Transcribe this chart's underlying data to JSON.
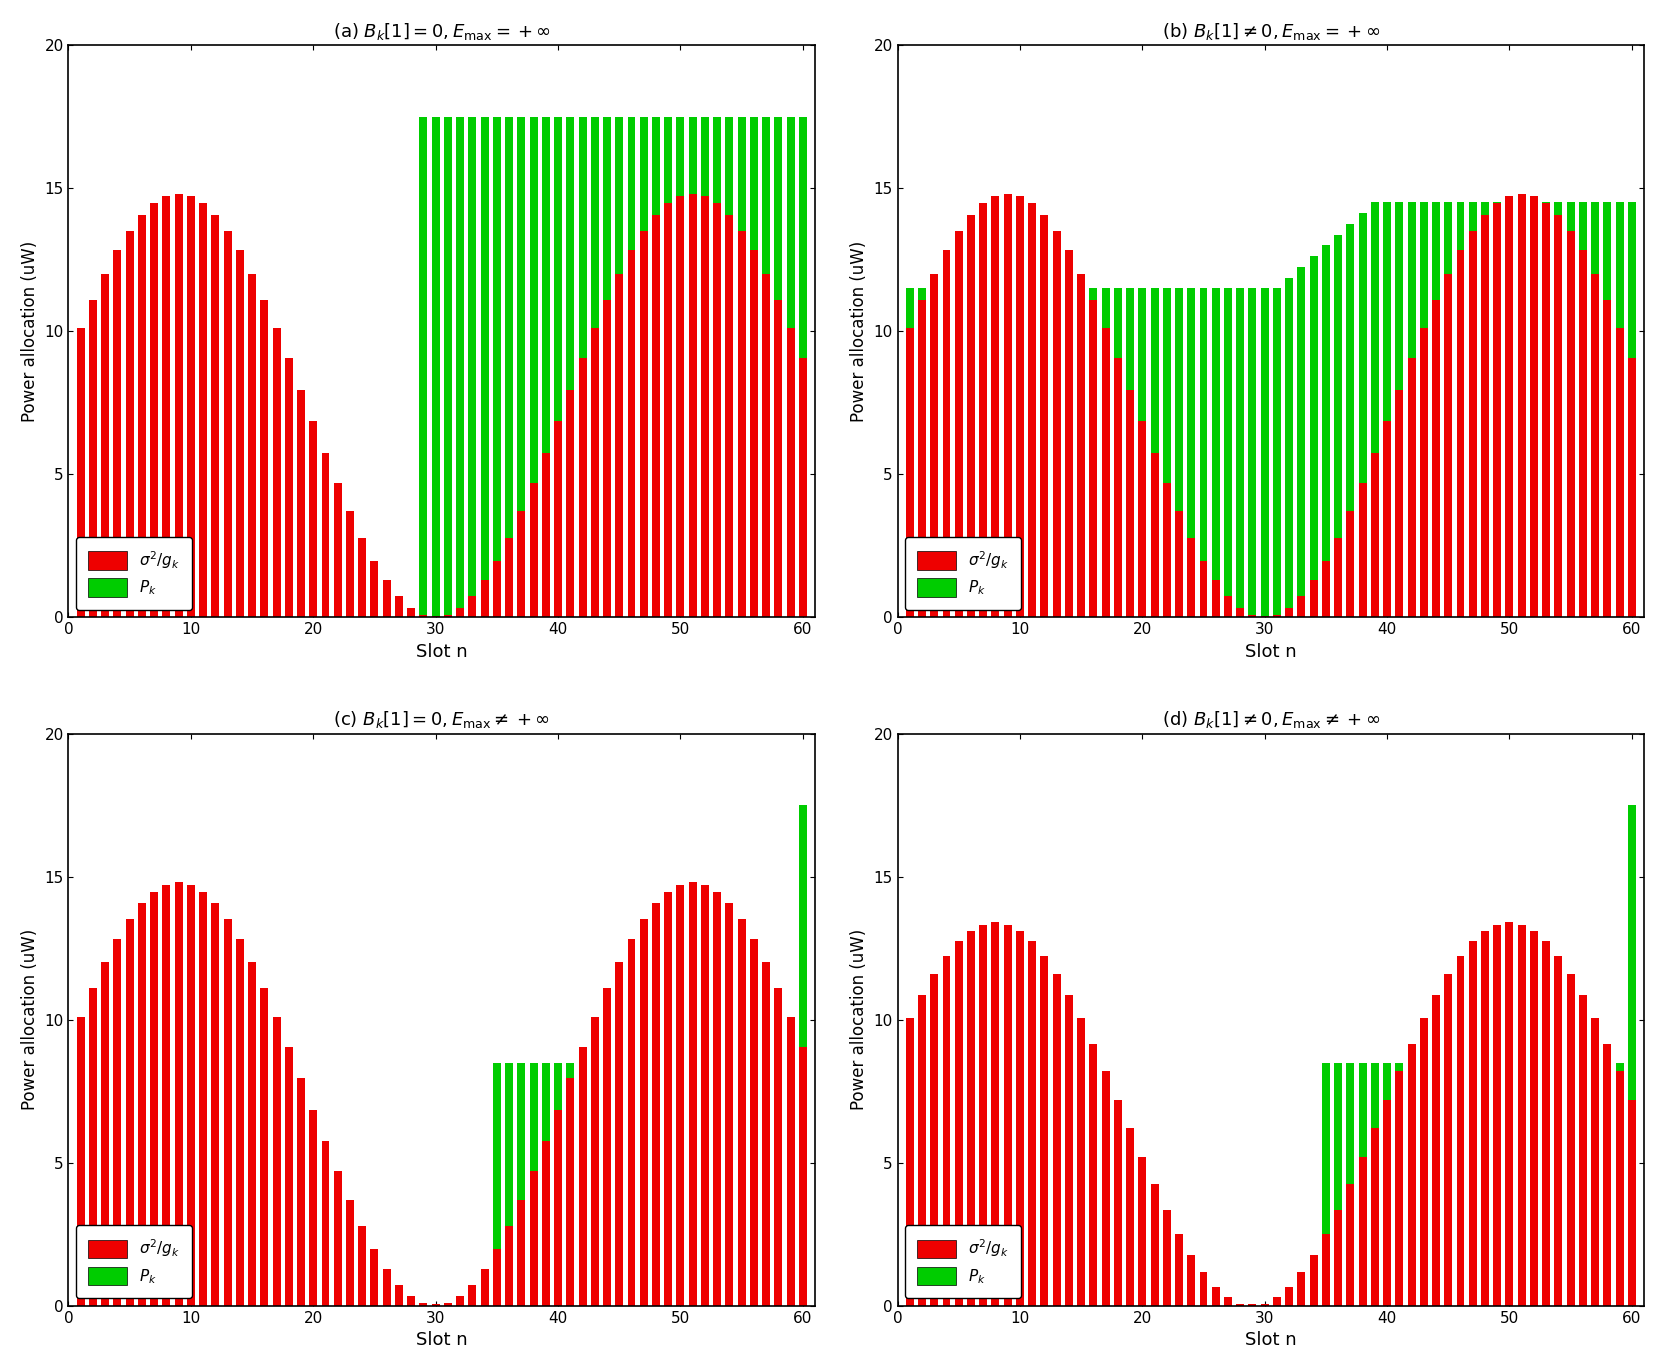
{
  "titles": [
    "(a) $B_k[1]=0,E_{\\mathrm{max}}=+\\infty$",
    "(b) $B_k[1]\\neq0,E_{\\mathrm{max}}=+\\infty$",
    "(c) $B_k[1]=0,E_{\\mathrm{max}}\\neq+\\infty$",
    "(d) $B_k[1]\\neq0,E_{\\mathrm{max}}\\neq+\\infty$"
  ],
  "xlabel": "Slot n",
  "ylabel": "Power allocation (uW)",
  "xlim": [
    0,
    61
  ],
  "ylim": [
    0,
    20
  ],
  "xticks": [
    0,
    10,
    20,
    30,
    40,
    50,
    60
  ],
  "yticks": [
    0,
    5,
    10,
    15,
    20
  ],
  "n_slots": 60,
  "red_color": "#EE0000",
  "green_color": "#00CC00",
  "bar_width": 0.65
}
